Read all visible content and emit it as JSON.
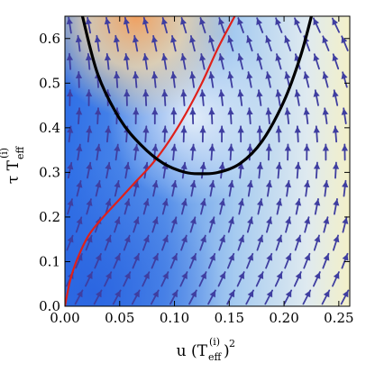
{
  "chart_data": {
    "type": "vector-field",
    "xlabel": {
      "base": "u (T",
      "sub": "eff",
      "sup_i": "(i)",
      "sup_2": "2"
    },
    "ylabel": {
      "base": "τ T",
      "sub": "eff",
      "sup_i": "(i)"
    },
    "xlim": [
      0.0,
      0.26
    ],
    "ylim": [
      0.0,
      0.65
    ],
    "x_ticks": [
      "0.00",
      "0.05",
      "0.10",
      "0.15",
      "0.20",
      "0.25"
    ],
    "y_ticks": [
      "0.0",
      "0.1",
      "0.2",
      "0.3",
      "0.4",
      "0.5",
      "0.6"
    ],
    "x_tick_values": [
      0.0,
      0.05,
      0.1,
      0.15,
      0.2,
      0.25
    ],
    "y_tick_values": [
      0.0,
      0.1,
      0.2,
      0.3,
      0.4,
      0.5,
      0.6
    ],
    "grid": false,
    "colors": {
      "arrow": "#3f3ea0",
      "red_curve": "#e0201a",
      "black_curve": "#000000",
      "background_low": "#2f6fe6",
      "background_mid": "#cfe4f6",
      "background_high": "#f0a060"
    },
    "series": [
      {
        "color": "red",
        "x": [
          0.0,
          0.005,
          0.012,
          0.022,
          0.035,
          0.05,
          0.065,
          0.08,
          0.095,
          0.11,
          0.125,
          0.14,
          0.155
        ],
        "y": [
          0.0,
          0.06,
          0.11,
          0.16,
          0.2,
          0.24,
          0.28,
          0.32,
          0.37,
          0.43,
          0.5,
          0.58,
          0.65
        ]
      },
      {
        "color": "black",
        "x": [
          0.016,
          0.03,
          0.05,
          0.07,
          0.09,
          0.11,
          0.125,
          0.14,
          0.16,
          0.18,
          0.2,
          0.215,
          0.225
        ],
        "y": [
          0.65,
          0.52,
          0.42,
          0.36,
          0.32,
          0.3,
          0.297,
          0.3,
          0.32,
          0.37,
          0.46,
          0.56,
          0.65
        ]
      }
    ]
  }
}
